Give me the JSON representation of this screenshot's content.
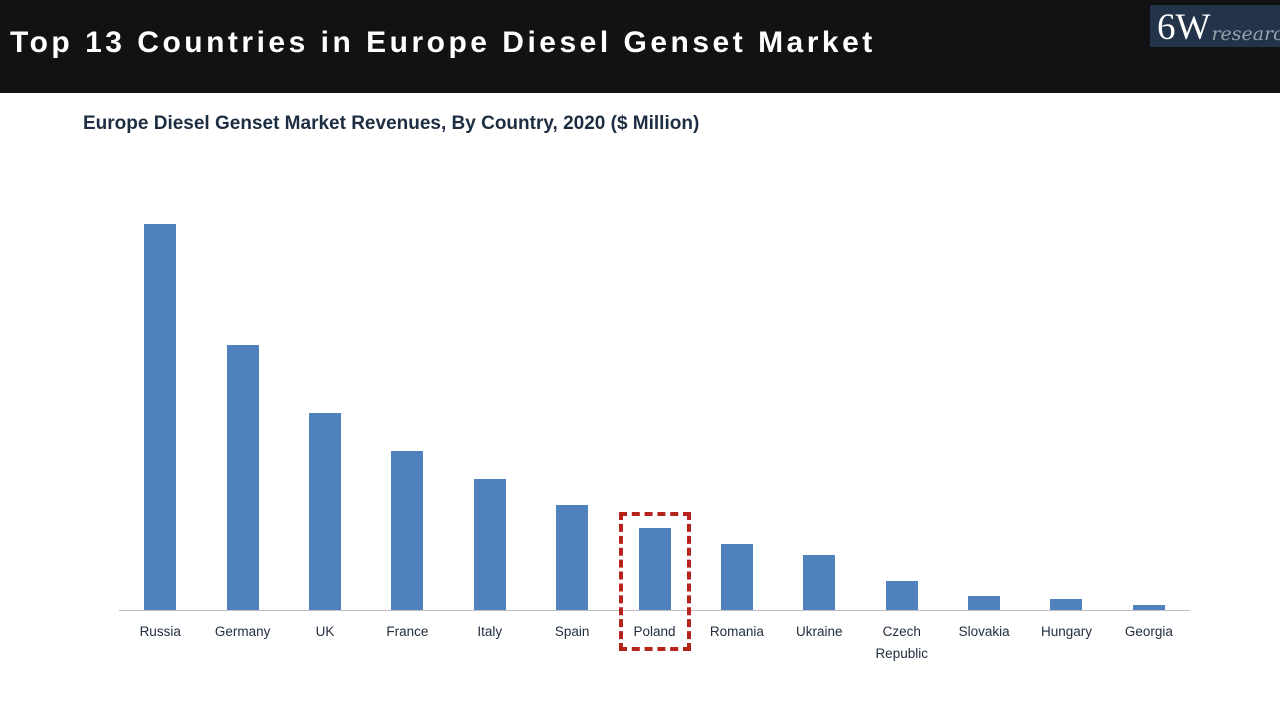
{
  "header": {
    "title": "Top 13 Countries in Europe Diesel Genset Market",
    "logo": {
      "brand": "6W",
      "suffix": "research"
    }
  },
  "chart_data": {
    "type": "bar",
    "title": "Europe Diesel Genset Market Revenues, By Country, 2020 ($ Million)",
    "categories": [
      "Russia",
      "Germany",
      "UK",
      "France",
      "Italy",
      "Spain",
      "Poland",
      "Romania",
      "Ukraine",
      "Czech Republic",
      "Slovakia",
      "Hungary",
      "Georgia"
    ],
    "values": [
      386,
      265,
      197,
      159,
      131,
      105,
      82,
      66,
      55,
      29,
      14,
      11,
      5
    ],
    "xlabel": "",
    "ylabel": "",
    "ylim": [
      0,
      410
    ],
    "grid": false,
    "legend": null,
    "value_labels_shown": false,
    "bar_color": "#4F81BD",
    "axis_color": "#bfbfbf",
    "highlight": {
      "category": "Poland",
      "style": "red-dashed-box",
      "color": "#b5231c"
    }
  },
  "colors": {
    "header_background": "#121214",
    "title_text": "#ffffff",
    "logo_background": "#22334a",
    "logo_research_text": "#97a1ad",
    "subtitle_text": "#1e2e42",
    "axis_label_text": "#1f2c3d"
  }
}
